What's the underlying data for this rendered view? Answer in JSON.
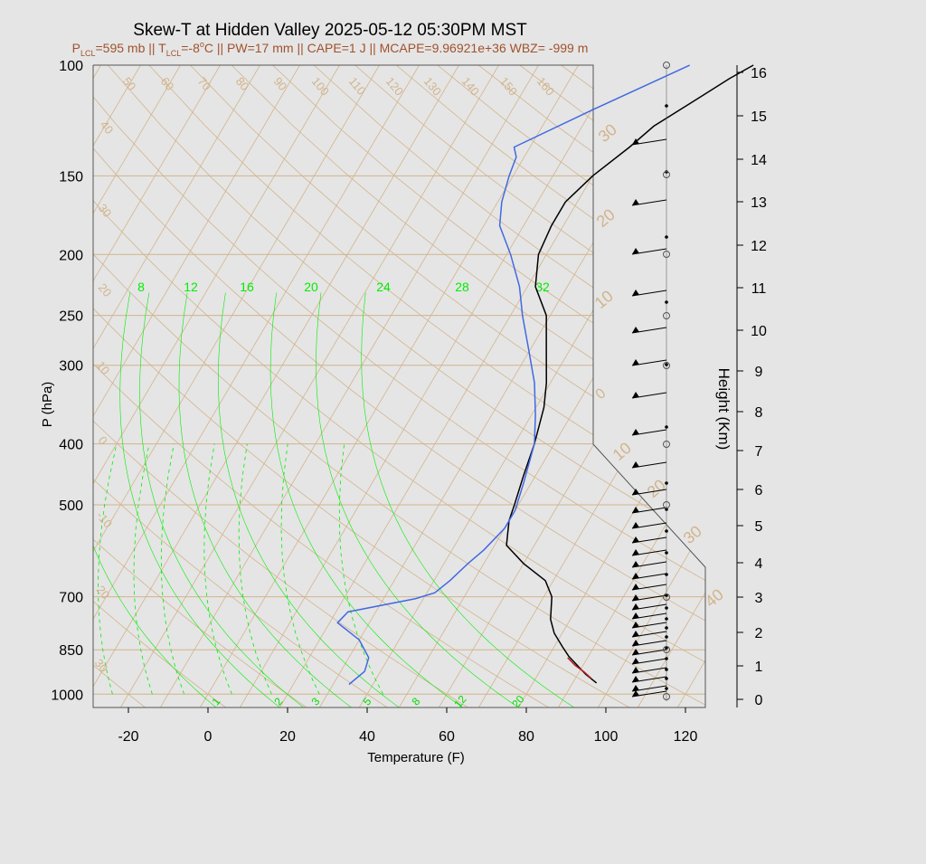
{
  "title": "Skew-T at Hidden Valley 2025-05-12 05:30PM MST",
  "subtitle": {
    "p_lcl_label": "P",
    "p_lcl_sub": "LCL",
    "p_lcl_val": "=595 mb || T",
    "t_lcl_sub": "LCL",
    "t_lcl_val": "=-8",
    "t_lcl_deg": "o",
    "rest": "C || PW=17 mm || CAPE=1 J || MCAPE=9.96921e+36 WBZ= -999 m"
  },
  "colors": {
    "temperature": "#000000",
    "dewpoint": "#4169e1",
    "parcel": "#b22222",
    "isotherm": "#d2b48c",
    "adiabat": "#d2b48c",
    "mixing_ratio": "#00ee00",
    "mixing_label": "#00dd00",
    "subtitle": "#a0522d",
    "background": "#e5e5e5"
  },
  "chart_data": {
    "type": "line",
    "title": "Skew-T at Hidden Valley 2025-05-12 05:30PM MST",
    "xlabel": "Temperature (F)",
    "ylabel": "P (hPa)",
    "y2label": "Height (Km)",
    "xlim": [
      -28,
      125
    ],
    "ylim": [
      1050,
      100
    ],
    "y_scale": "log",
    "x_ticks": [
      "-20",
      "0",
      "20",
      "40",
      "60",
      "80",
      "100",
      "120"
    ],
    "y_ticks": [
      "100",
      "150",
      "200",
      "250",
      "300",
      "400",
      "500",
      "700",
      "850",
      "1000"
    ],
    "height_ticks": [
      "0",
      "1",
      "2",
      "3",
      "4",
      "5",
      "6",
      "7",
      "8",
      "9",
      "10",
      "11",
      "12",
      "13",
      "14",
      "15",
      "16"
    ],
    "isotherm_labels": [
      "50",
      "60",
      "70",
      "80",
      "90",
      "100",
      "110",
      "120",
      "130",
      "140",
      "150",
      "160",
      "40",
      "30",
      "20",
      "10",
      "0",
      "-10",
      "20",
      "30",
      "30",
      "20",
      "10",
      "0",
      "10",
      "20",
      "30",
      "40"
    ],
    "mixing_ratio_labels_top": [
      "8",
      "12",
      "16",
      "20",
      "24",
      "28",
      "32"
    ],
    "mixing_ratio_labels_bottom": [
      "1",
      "2",
      "3",
      "5",
      "8",
      "12",
      "20"
    ],
    "series": [
      {
        "name": "Temperature",
        "points": [
          [
            96,
            960
          ],
          [
            92,
            930
          ],
          [
            85,
            870
          ],
          [
            82,
            840
          ],
          [
            78,
            800
          ],
          [
            75,
            760
          ],
          [
            72,
            700
          ],
          [
            68,
            660
          ],
          [
            60,
            620
          ],
          [
            53,
            580
          ],
          [
            50,
            530
          ],
          [
            49,
            500
          ],
          [
            47,
            450
          ],
          [
            45,
            400
          ],
          [
            42,
            350
          ],
          [
            39,
            320
          ],
          [
            35,
            290
          ],
          [
            29,
            250
          ],
          [
            22,
            225
          ],
          [
            18,
            200
          ],
          [
            17,
            180
          ],
          [
            17,
            165
          ],
          [
            20,
            150
          ],
          [
            25,
            135
          ],
          [
            28,
            125
          ],
          [
            35,
            113
          ],
          [
            40,
            105
          ],
          [
            44,
            100
          ]
        ]
      },
      {
        "name": "Dewpoint",
        "points": [
          [
            34,
            965
          ],
          [
            36,
            920
          ],
          [
            35,
            875
          ],
          [
            30,
            820
          ],
          [
            22,
            770
          ],
          [
            23,
            740
          ],
          [
            38,
            705
          ],
          [
            42,
            690
          ],
          [
            44,
            660
          ],
          [
            46,
            620
          ],
          [
            48,
            590
          ],
          [
            50,
            545
          ],
          [
            50,
            510
          ],
          [
            48,
            460
          ],
          [
            45,
            400
          ],
          [
            41,
            360
          ],
          [
            36,
            320
          ],
          [
            29,
            280
          ],
          [
            23,
            250
          ],
          [
            18,
            225
          ],
          [
            11,
            200
          ],
          [
            4,
            180
          ],
          [
            1,
            165
          ],
          [
            -1,
            150
          ],
          [
            -2,
            140
          ],
          [
            -4,
            135
          ],
          [
            10,
            118
          ],
          [
            28,
            100
          ]
        ]
      },
      {
        "name": "Parcel",
        "points": [
          [
            94,
            944
          ],
          [
            91,
            920
          ],
          [
            88,
            900
          ],
          [
            85,
            875
          ]
        ]
      }
    ]
  }
}
